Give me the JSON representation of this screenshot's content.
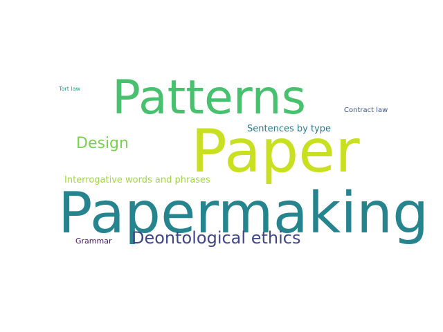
{
  "words": {
    "patterns": {
      "text": "Patterns",
      "color": "#48c16e"
    },
    "paper": {
      "text": "Paper",
      "color": "#c8e020"
    },
    "papermaking": {
      "text": "Papermaking",
      "color": "#25848e"
    },
    "design": {
      "text": "Design",
      "color": "#7ad151"
    },
    "deontological_ethics": {
      "text": "Deontological ethics",
      "color": "#404688"
    },
    "sentences_by_type": {
      "text": "Sentences by type",
      "color": "#2a788e"
    },
    "interrogative": {
      "text": "Interrogative words and phrases",
      "color": "#a0da39"
    },
    "grammar": {
      "text": "Grammar",
      "color": "#471365"
    },
    "contract_law": {
      "text": "Contract law",
      "color": "#3b528b"
    },
    "tort_law": {
      "text": "Tort law",
      "color": "#22a884"
    }
  },
  "background_color": "#ffffff"
}
